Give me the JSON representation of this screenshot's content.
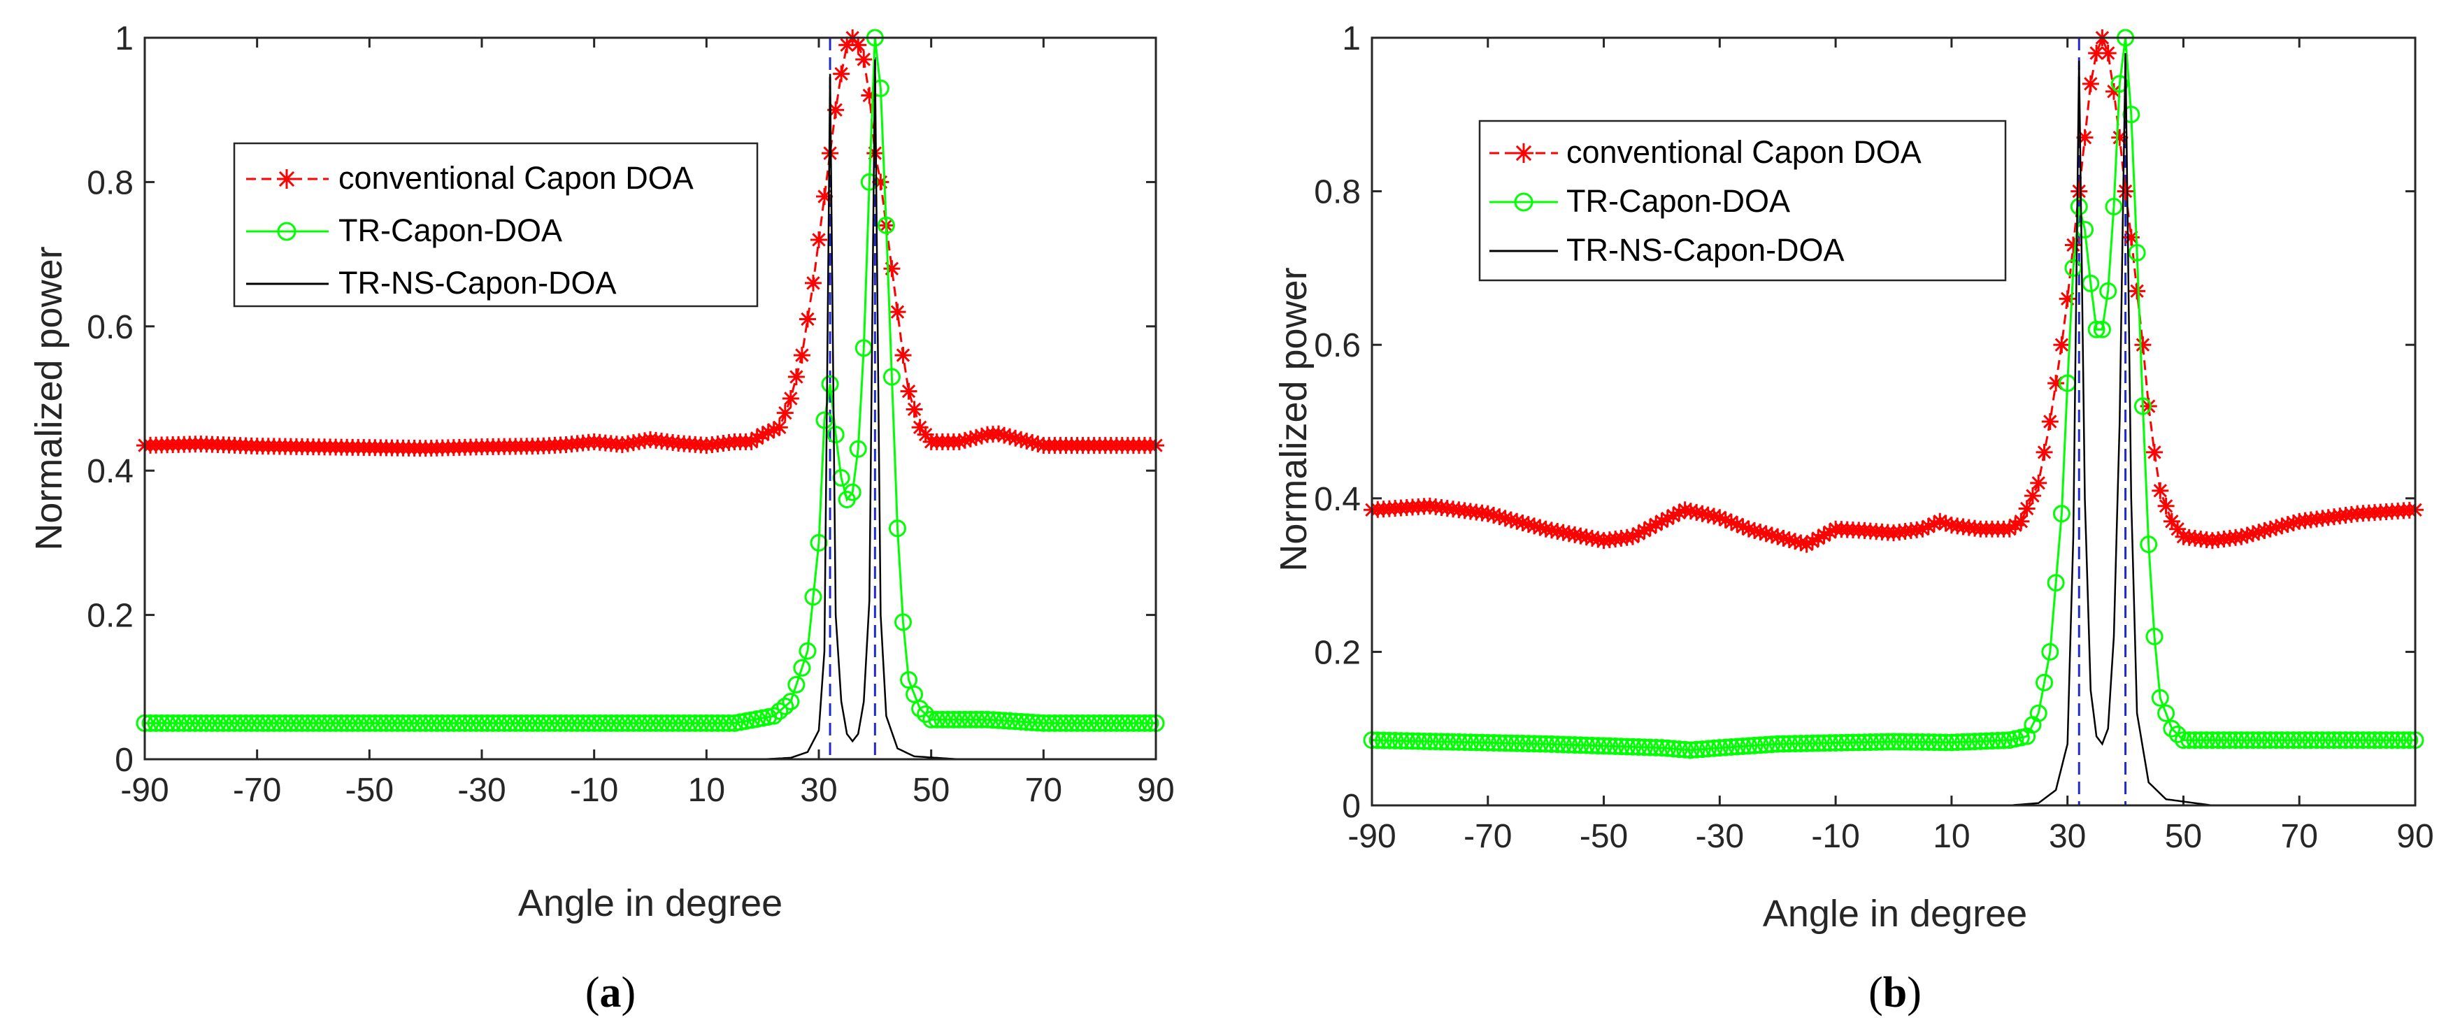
{
  "colors": {
    "capon": "#ff0000",
    "tr_capon": "#00ff00",
    "tr_ns_capon": "#000000",
    "true_doa": "#1f2bd0",
    "axes": "#262626"
  },
  "chart_data": [
    {
      "type": "line",
      "caption": "(a)",
      "caption_letter": "a",
      "xlabel": "Angle in degree",
      "ylabel": "Normalized power",
      "xlim": [
        -90,
        90
      ],
      "ylim": [
        0,
        1
      ],
      "xticks": [
        -90,
        -70,
        -50,
        -30,
        -10,
        10,
        30,
        50,
        70,
        90
      ],
      "xtick_labels": [
        "-90",
        "-70",
        "-50",
        "-30",
        "-10",
        "10",
        "30",
        "50",
        "70",
        "90"
      ],
      "yticks": [
        0,
        0.2,
        0.4,
        0.6,
        0.8,
        1
      ],
      "ytick_labels": [
        "0",
        "0.2",
        "0.4",
        "0.6",
        "0.8",
        "1"
      ],
      "grid": false,
      "legend": {
        "placement": "top-left",
        "entries": [
          "conventional Capon DOA",
          "TR-Capon-DOA",
          "TR-NS-Capon-DOA"
        ]
      },
      "true_doa": [
        32,
        40
      ],
      "series": [
        {
          "name": "conventional Capon DOA",
          "marker": "asterisk",
          "linestyle": "dashed",
          "points": [
            [
              -90,
              0.435
            ],
            [
              -80,
              0.437
            ],
            [
              -70,
              0.434
            ],
            [
              -60,
              0.433
            ],
            [
              -50,
              0.432
            ],
            [
              -40,
              0.431
            ],
            [
              -30,
              0.433
            ],
            [
              -20,
              0.434
            ],
            [
              -15,
              0.436
            ],
            [
              -10,
              0.44
            ],
            [
              -5,
              0.436
            ],
            [
              0,
              0.443
            ],
            [
              5,
              0.438
            ],
            [
              10,
              0.435
            ],
            [
              15,
              0.44
            ],
            [
              18,
              0.44
            ],
            [
              20,
              0.45
            ],
            [
              23,
              0.46
            ],
            [
              25,
              0.5
            ],
            [
              27,
              0.56
            ],
            [
              29,
              0.66
            ],
            [
              31,
              0.78
            ],
            [
              33,
              0.9
            ],
            [
              34,
              0.95
            ],
            [
              35,
              0.99
            ],
            [
              36,
              1.0
            ],
            [
              37,
              0.99
            ],
            [
              38,
              0.97
            ],
            [
              39,
              0.92
            ],
            [
              40,
              0.84
            ],
            [
              41,
              0.8
            ],
            [
              42,
              0.74
            ],
            [
              43,
              0.68
            ],
            [
              44,
              0.62
            ],
            [
              45,
              0.56
            ],
            [
              46,
              0.51
            ],
            [
              48,
              0.46
            ],
            [
              50,
              0.44
            ],
            [
              55,
              0.44
            ],
            [
              60,
              0.45
            ],
            [
              62,
              0.451
            ],
            [
              65,
              0.445
            ],
            [
              70,
              0.435
            ],
            [
              80,
              0.435
            ],
            [
              90,
              0.435
            ]
          ]
        },
        {
          "name": "TR-Capon-DOA",
          "marker": "circle",
          "linestyle": "solid",
          "points": [
            [
              -90,
              0.05
            ],
            [
              -60,
              0.05
            ],
            [
              -30,
              0.05
            ],
            [
              0,
              0.05
            ],
            [
              15,
              0.05
            ],
            [
              22,
              0.06
            ],
            [
              25,
              0.08
            ],
            [
              28,
              0.15
            ],
            [
              30,
              0.3
            ],
            [
              31,
              0.47
            ],
            [
              32,
              0.52
            ],
            [
              33,
              0.45
            ],
            [
              34,
              0.39
            ],
            [
              35,
              0.36
            ],
            [
              36,
              0.37
            ],
            [
              37,
              0.43
            ],
            [
              38,
              0.57
            ],
            [
              39,
              0.8
            ],
            [
              40,
              1.0
            ],
            [
              41,
              0.93
            ],
            [
              42,
              0.74
            ],
            [
              43,
              0.53
            ],
            [
              44,
              0.32
            ],
            [
              45,
              0.19
            ],
            [
              46,
              0.11
            ],
            [
              48,
              0.07
            ],
            [
              50,
              0.055
            ],
            [
              60,
              0.055
            ],
            [
              70,
              0.05
            ],
            [
              90,
              0.05
            ]
          ]
        },
        {
          "name": "TR-NS-Capon-DOA",
          "marker": "none",
          "linestyle": "solid",
          "points": [
            [
              -90,
              0
            ],
            [
              20,
              0.0
            ],
            [
              25,
              0.002
            ],
            [
              28,
              0.01
            ],
            [
              30,
              0.04
            ],
            [
              31,
              0.15
            ],
            [
              32,
              0.95
            ],
            [
              33,
              0.2
            ],
            [
              34,
              0.08
            ],
            [
              35,
              0.035
            ],
            [
              36,
              0.025
            ],
            [
              37,
              0.035
            ],
            [
              38,
              0.08
            ],
            [
              39,
              0.22
            ],
            [
              40,
              0.97
            ],
            [
              41,
              0.2
            ],
            [
              42,
              0.06
            ],
            [
              44,
              0.015
            ],
            [
              47,
              0.004
            ],
            [
              55,
              0.0
            ],
            [
              90,
              0
            ]
          ]
        }
      ]
    },
    {
      "type": "line",
      "caption": "(b)",
      "caption_letter": "b",
      "xlabel": "Angle in degree",
      "ylabel": "Normalized power",
      "xlim": [
        -90,
        90
      ],
      "ylim": [
        0,
        1
      ],
      "xticks": [
        -90,
        -70,
        -50,
        -30,
        -10,
        10,
        30,
        50,
        70,
        90
      ],
      "xtick_labels": [
        "-90",
        "-70",
        "-50",
        "-30",
        "-10",
        "10",
        "30",
        "50",
        "70",
        "90"
      ],
      "yticks": [
        0,
        0.2,
        0.4,
        0.6,
        0.8,
        1
      ],
      "ytick_labels": [
        "0",
        "0.2",
        "0.4",
        "0.6",
        "0.8",
        "1"
      ],
      "grid": false,
      "legend": {
        "placement": "top-left",
        "entries": [
          "conventional Capon DOA",
          "TR-Capon-DOA",
          "TR-NS-Capon-DOA"
        ]
      },
      "true_doa": [
        32,
        40
      ],
      "series": [
        {
          "name": "conventional Capon DOA",
          "marker": "asterisk",
          "linestyle": "dashed",
          "points": [
            [
              -90,
              0.385
            ],
            [
              -80,
              0.39
            ],
            [
              -70,
              0.38
            ],
            [
              -60,
              0.36
            ],
            [
              -50,
              0.345
            ],
            [
              -45,
              0.35
            ],
            [
              -40,
              0.37
            ],
            [
              -36,
              0.385
            ],
            [
              -30,
              0.375
            ],
            [
              -25,
              0.36
            ],
            [
              -20,
              0.35
            ],
            [
              -15,
              0.34
            ],
            [
              -10,
              0.36
            ],
            [
              -5,
              0.358
            ],
            [
              0,
              0.355
            ],
            [
              5,
              0.36
            ],
            [
              8,
              0.37
            ],
            [
              10,
              0.365
            ],
            [
              15,
              0.36
            ],
            [
              20,
              0.36
            ],
            [
              22,
              0.37
            ],
            [
              25,
              0.42
            ],
            [
              27,
              0.5
            ],
            [
              29,
              0.6
            ],
            [
              30,
              0.66
            ],
            [
              31,
              0.73
            ],
            [
              32,
              0.8
            ],
            [
              33,
              0.87
            ],
            [
              34,
              0.94
            ],
            [
              35,
              0.98
            ],
            [
              36,
              1.0
            ],
            [
              37,
              0.98
            ],
            [
              38,
              0.93
            ],
            [
              39,
              0.87
            ],
            [
              40,
              0.8
            ],
            [
              41,
              0.74
            ],
            [
              42,
              0.67
            ],
            [
              43,
              0.6
            ],
            [
              44,
              0.52
            ],
            [
              45,
              0.46
            ],
            [
              46,
              0.41
            ],
            [
              48,
              0.37
            ],
            [
              50,
              0.35
            ],
            [
              55,
              0.345
            ],
            [
              60,
              0.35
            ],
            [
              65,
              0.36
            ],
            [
              70,
              0.37
            ],
            [
              80,
              0.38
            ],
            [
              90,
              0.385
            ]
          ]
        },
        {
          "name": "TR-Capon-DOA",
          "marker": "circle",
          "linestyle": "solid",
          "points": [
            [
              -90,
              0.085
            ],
            [
              -60,
              0.08
            ],
            [
              -40,
              0.075
            ],
            [
              -35,
              0.072
            ],
            [
              -30,
              0.075
            ],
            [
              -20,
              0.08
            ],
            [
              0,
              0.083
            ],
            [
              10,
              0.082
            ],
            [
              20,
              0.085
            ],
            [
              23,
              0.09
            ],
            [
              25,
              0.12
            ],
            [
              27,
              0.2
            ],
            [
              29,
              0.38
            ],
            [
              30,
              0.55
            ],
            [
              31,
              0.7
            ],
            [
              32,
              0.78
            ],
            [
              33,
              0.75
            ],
            [
              34,
              0.68
            ],
            [
              35,
              0.62
            ],
            [
              36,
              0.62
            ],
            [
              37,
              0.67
            ],
            [
              38,
              0.78
            ],
            [
              39,
              0.94
            ],
            [
              40,
              1.0
            ],
            [
              41,
              0.9
            ],
            [
              42,
              0.72
            ],
            [
              43,
              0.52
            ],
            [
              44,
              0.34
            ],
            [
              45,
              0.22
            ],
            [
              46,
              0.14
            ],
            [
              48,
              0.1
            ],
            [
              50,
              0.085
            ],
            [
              60,
              0.085
            ],
            [
              90,
              0.085
            ]
          ]
        },
        {
          "name": "TR-NS-Capon-DOA",
          "marker": "none",
          "linestyle": "solid",
          "points": [
            [
              -90,
              0
            ],
            [
              20,
              0.0
            ],
            [
              25,
              0.003
            ],
            [
              28,
              0.02
            ],
            [
              30,
              0.08
            ],
            [
              31,
              0.35
            ],
            [
              32,
              0.97
            ],
            [
              33,
              0.4
            ],
            [
              34,
              0.15
            ],
            [
              35,
              0.09
            ],
            [
              36,
              0.08
            ],
            [
              37,
              0.1
            ],
            [
              38,
              0.22
            ],
            [
              39,
              0.5
            ],
            [
              40,
              0.98
            ],
            [
              41,
              0.4
            ],
            [
              42,
              0.12
            ],
            [
              44,
              0.03
            ],
            [
              47,
              0.008
            ],
            [
              55,
              0.0
            ],
            [
              90,
              0
            ]
          ]
        }
      ]
    }
  ]
}
